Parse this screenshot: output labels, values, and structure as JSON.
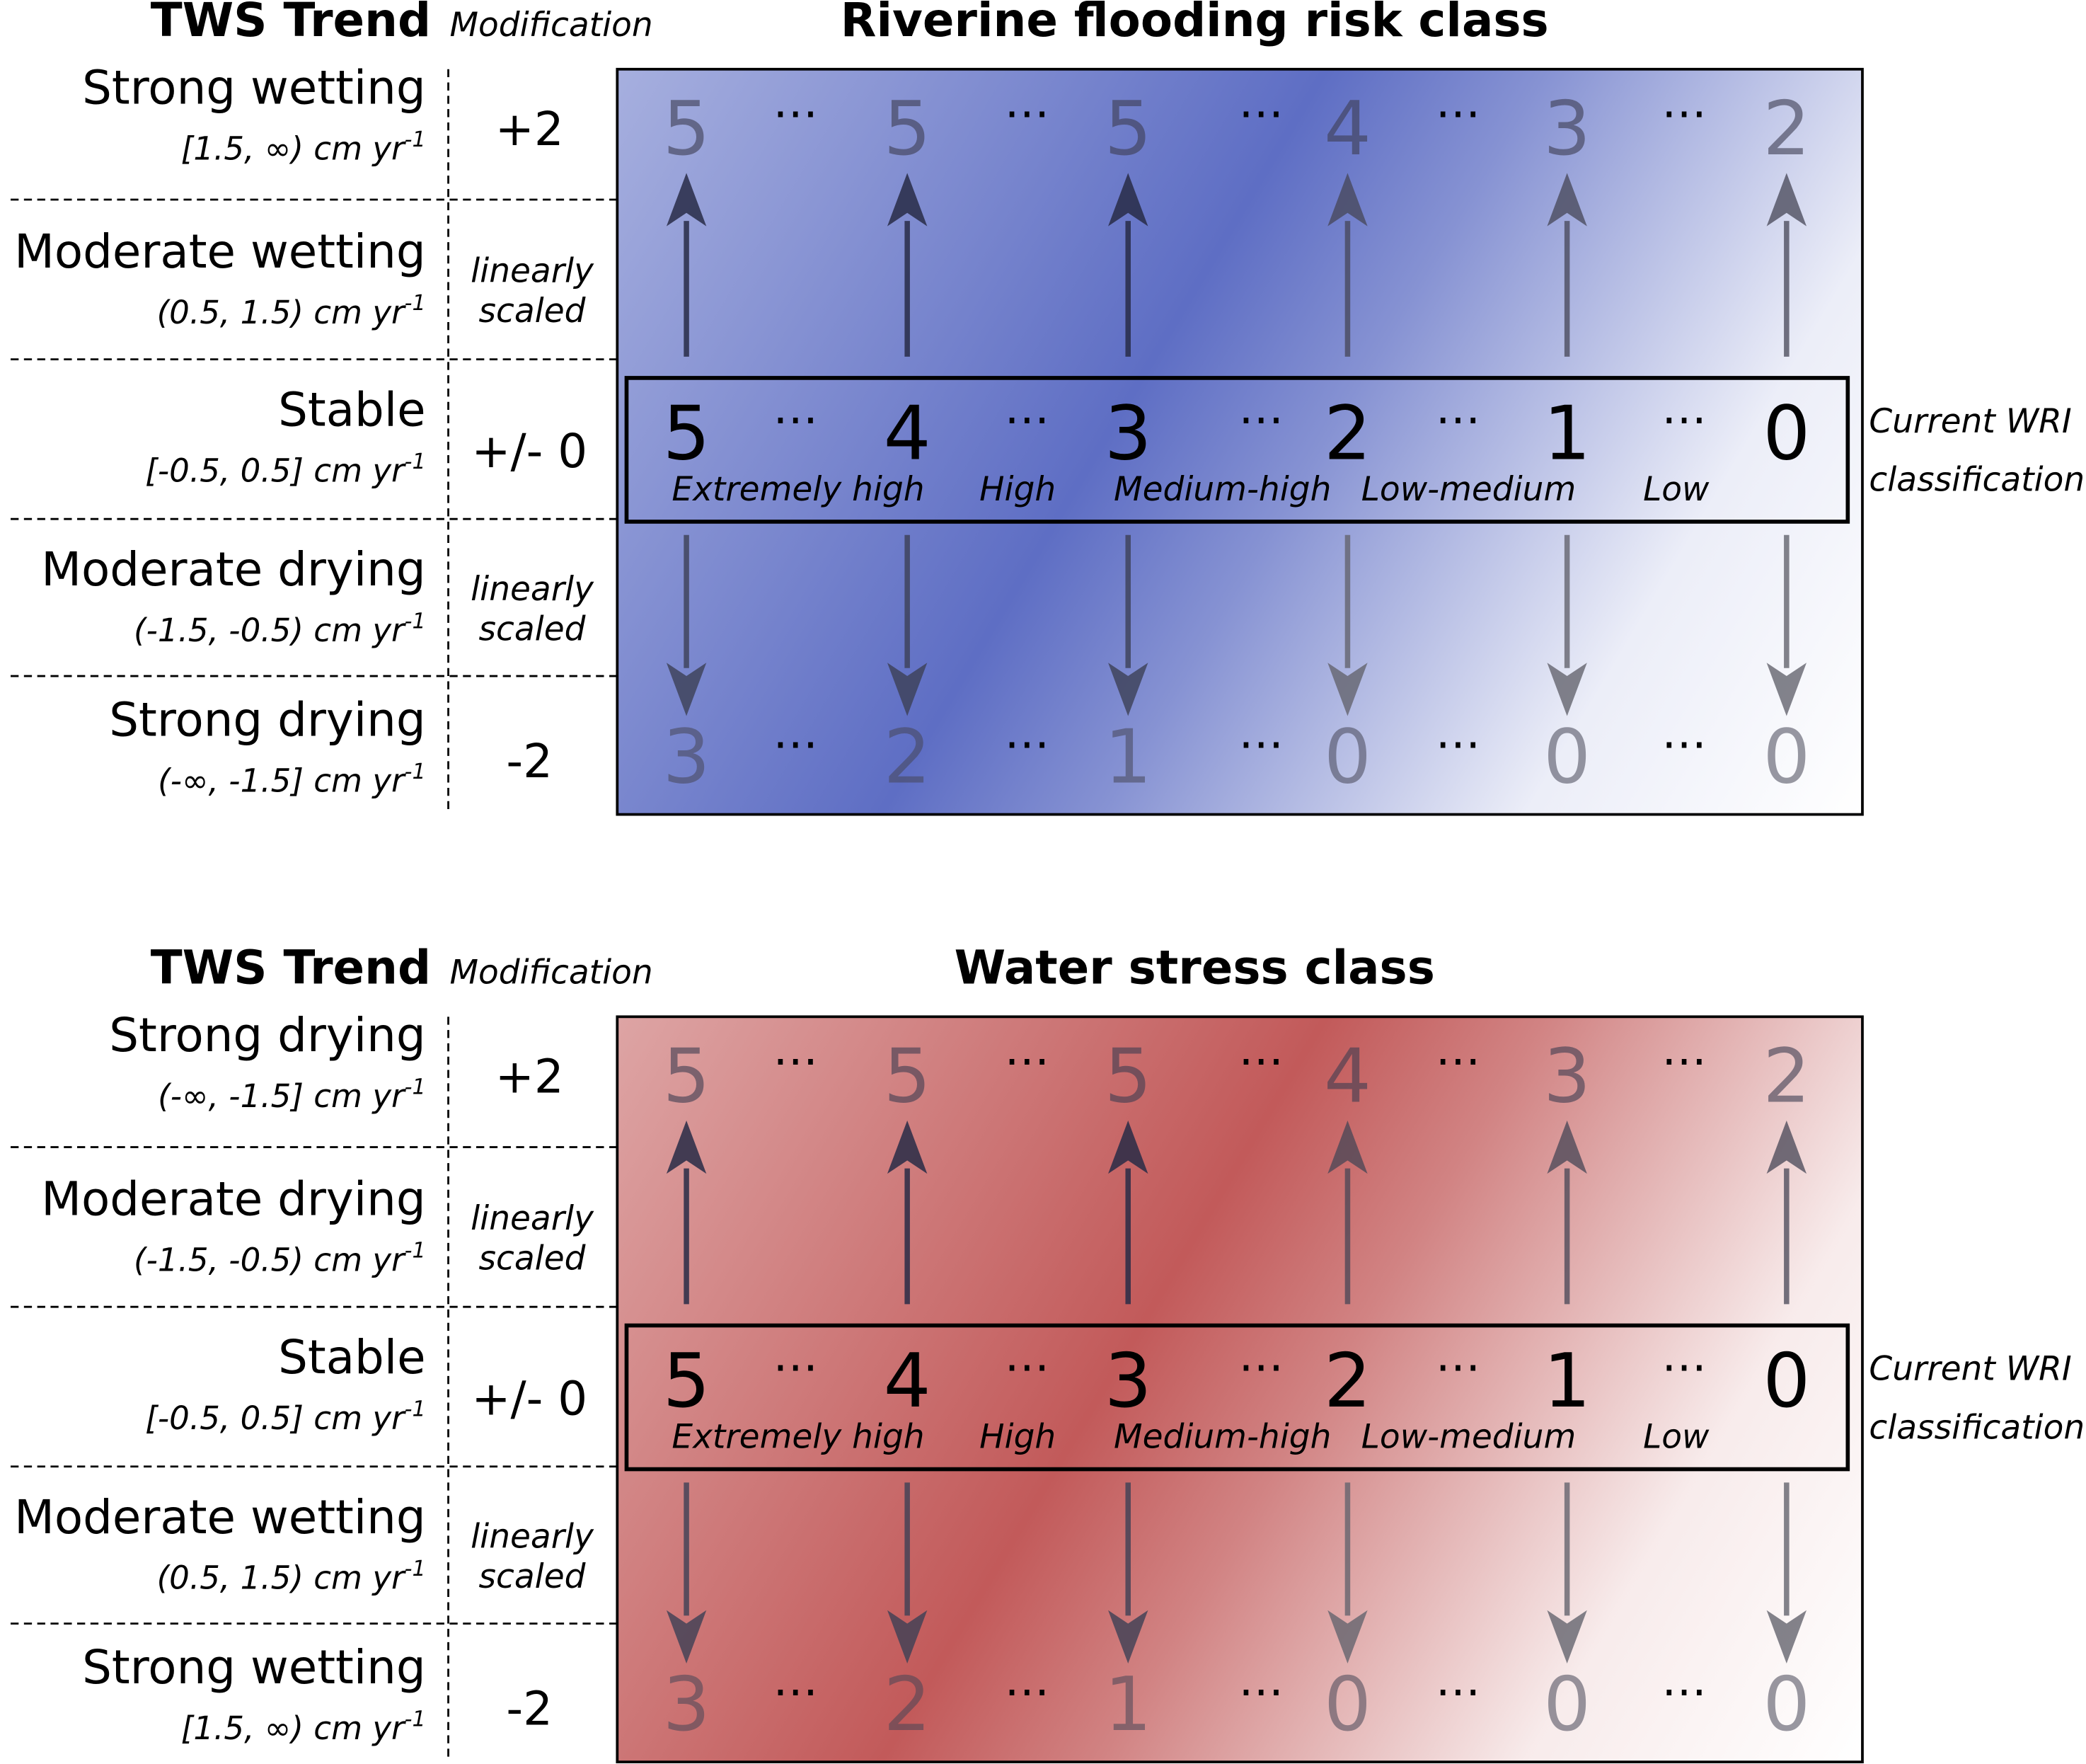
{
  "panels": [
    {
      "id": "flood",
      "header_tws": "TWS Trend",
      "header_mod": "Modification",
      "title": "Riverine flooding risk class",
      "rows": [
        {
          "name": "Strong wetting",
          "range": "[1.5, ∞)  cm yr",
          "unit_sup": "-1",
          "mod_lines": [
            "+2"
          ]
        },
        {
          "name": "Moderate wetting",
          "range": "(0.5, 1.5) cm yr",
          "unit_sup": "-1",
          "mod_lines": [
            "linearly",
            "scaled"
          ]
        },
        {
          "name": "Stable",
          "range": "[-0.5, 0.5] cm yr",
          "unit_sup": "-1",
          "mod_lines": [
            "+/- 0"
          ]
        },
        {
          "name": "Moderate drying",
          "range": "(-1.5, -0.5) cm yr",
          "unit_sup": "-1",
          "mod_lines": [
            "linearly",
            "scaled"
          ]
        },
        {
          "name": "Strong drying",
          "range": "(-∞, -1.5] cm yr",
          "unit_sup": "-1",
          "mod_lines": [
            "-2"
          ]
        }
      ],
      "top_values": [
        "5",
        "5",
        "5",
        "4",
        "3",
        "2"
      ],
      "mid_values": [
        "5",
        "4",
        "3",
        "2",
        "1",
        "0"
      ],
      "bottom_values": [
        "3",
        "2",
        "1",
        "0",
        "0",
        "0"
      ],
      "ellipsis": "…",
      "class_labels": [
        "Extremely high",
        "High",
        "Medium-high",
        "Low-medium",
        "Low"
      ],
      "side_label": [
        "Current WRI",
        "classification"
      ],
      "gradient_color": "#5e6ec4"
    },
    {
      "id": "stress",
      "header_tws": "TWS Trend",
      "header_mod": "Modification",
      "title": "Water stress class",
      "rows": [
        {
          "name": "Strong drying",
          "range": "(-∞, -1.5] cm yr",
          "unit_sup": "-1",
          "mod_lines": [
            "+2"
          ]
        },
        {
          "name": "Moderate drying",
          "range": "(-1.5, -0.5) cm yr",
          "unit_sup": "-1",
          "mod_lines": [
            "linearly",
            "scaled"
          ]
        },
        {
          "name": "Stable",
          "range": "[-0.5, 0.5] cm yr",
          "unit_sup": "-1",
          "mod_lines": [
            "+/- 0"
          ]
        },
        {
          "name": "Moderate wetting",
          "range": "(0.5, 1.5) cm yr",
          "unit_sup": "-1",
          "mod_lines": [
            "linearly",
            "scaled"
          ]
        },
        {
          "name": "Strong wetting",
          "range": "[1.5, ∞)  cm yr",
          "unit_sup": "-1",
          "mod_lines": [
            "-2"
          ]
        }
      ],
      "top_values": [
        "5",
        "5",
        "5",
        "4",
        "3",
        "2"
      ],
      "mid_values": [
        "5",
        "4",
        "3",
        "2",
        "1",
        "0"
      ],
      "bottom_values": [
        "3",
        "2",
        "1",
        "0",
        "0",
        "0"
      ],
      "ellipsis": "…",
      "class_labels": [
        "Extremely high",
        "High",
        "Medium-high",
        "Low-medium",
        "Low"
      ],
      "side_label": [
        "Current WRI",
        "classification"
      ],
      "gradient_color": "#c25a5a"
    }
  ]
}
